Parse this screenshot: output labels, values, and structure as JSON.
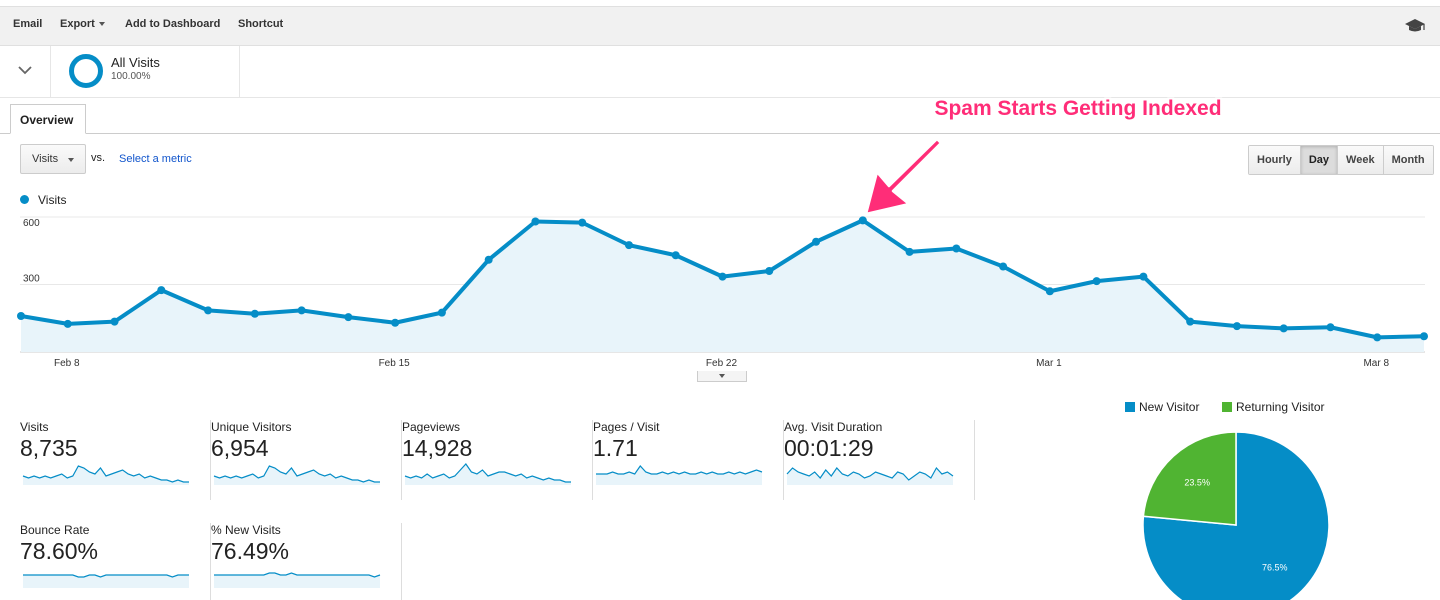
{
  "toolbar": {
    "email": "Email",
    "export": "Export",
    "add_to_dashboard": "Add to Dashboard",
    "shortcut": "Shortcut",
    "help_icon": "graduation-cap-icon"
  },
  "segment": {
    "name": "All Visits",
    "percent": "100.00%",
    "color": "#058dc7"
  },
  "tabs": [
    {
      "label": "Overview"
    }
  ],
  "metric_selector": {
    "value": "Visits",
    "vs_label": "vs.",
    "select_metric": "Select a metric"
  },
  "granularity": {
    "options": [
      "Hourly",
      "Day",
      "Week",
      "Month"
    ],
    "selected": "Day"
  },
  "annotation": {
    "text": "Spam Starts Getting Indexed",
    "color": "#ff2d78"
  },
  "chart_data": {
    "type": "area",
    "series": [
      {
        "name": "Visits",
        "color": "#058dc7",
        "values": [
          160,
          125,
          135,
          275,
          185,
          170,
          185,
          155,
          130,
          175,
          410,
          580,
          575,
          475,
          430,
          335,
          360,
          490,
          585,
          445,
          460,
          380,
          270,
          315,
          335,
          135,
          115,
          105,
          110,
          65,
          70
        ]
      }
    ],
    "x_tick_labels": [
      "Feb 8",
      "Feb 15",
      "Feb 22",
      "Mar 1",
      "Mar 8"
    ],
    "x_tick_indices": [
      1,
      8,
      15,
      22,
      29
    ],
    "y_ticks": [
      300,
      600
    ],
    "ylim": [
      0,
      600
    ],
    "grid": true,
    "legend": "top-left"
  },
  "scorecards": [
    {
      "label": "Visits",
      "value": "8,735",
      "spark": [
        4,
        3,
        4,
        3,
        4,
        3,
        4,
        5,
        3,
        4,
        9,
        8,
        6,
        5,
        8,
        4,
        5,
        6,
        7,
        5,
        4,
        5,
        3,
        4,
        3,
        2,
        2,
        1,
        2,
        1,
        1
      ]
    },
    {
      "label": "Unique Visitors",
      "value": "6,954",
      "spark": [
        4,
        3,
        4,
        3,
        4,
        3,
        4,
        5,
        3,
        4,
        9,
        8,
        6,
        5,
        8,
        4,
        5,
        6,
        7,
        5,
        4,
        5,
        3,
        4,
        3,
        2,
        2,
        1,
        2,
        1,
        1
      ]
    },
    {
      "label": "Pageviews",
      "value": "14,928",
      "spark": [
        4,
        3,
        4,
        3,
        5,
        3,
        4,
        5,
        3,
        4,
        7,
        10,
        6,
        5,
        7,
        4,
        5,
        6,
        6,
        5,
        4,
        5,
        3,
        4,
        3,
        2,
        3,
        2,
        2,
        1,
        1
      ]
    },
    {
      "label": "Pages / Visit",
      "value": "1.71",
      "spark": [
        5,
        5,
        5,
        6,
        5,
        5,
        6,
        5,
        9,
        6,
        5,
        5,
        6,
        5,
        6,
        5,
        6,
        5,
        5,
        6,
        5,
        6,
        5,
        5,
        6,
        5,
        6,
        5,
        6,
        7,
        6
      ]
    },
    {
      "label": "Avg. Visit Duration",
      "value": "00:01:29",
      "spark": [
        5,
        8,
        6,
        5,
        4,
        6,
        3,
        7,
        4,
        8,
        5,
        4,
        6,
        5,
        3,
        4,
        6,
        5,
        4,
        3,
        6,
        5,
        2,
        4,
        6,
        5,
        3,
        8,
        5,
        6,
        4
      ]
    },
    {
      "label": "Bounce Rate",
      "value": "78.60%",
      "spark": [
        6,
        6,
        6,
        6,
        6,
        6,
        6,
        6,
        6,
        6,
        5,
        5,
        6,
        6,
        5,
        6,
        6,
        6,
        6,
        6,
        6,
        6,
        6,
        6,
        6,
        6,
        6,
        5,
        6,
        6,
        6
      ]
    },
    {
      "label": "% New Visits",
      "value": "76.49%",
      "spark": [
        6,
        6,
        6,
        6,
        6,
        6,
        6,
        6,
        6,
        6,
        7,
        7,
        6,
        6,
        7,
        6,
        6,
        6,
        6,
        6,
        6,
        6,
        6,
        6,
        6,
        6,
        6,
        6,
        6,
        5,
        6
      ]
    }
  ],
  "pie_chart": {
    "type": "pie",
    "slices": [
      {
        "name": "New Visitor",
        "value": 76.5,
        "label": "76.5%",
        "color": "#058dc7"
      },
      {
        "name": "Returning Visitor",
        "value": 23.5,
        "label": "23.5%",
        "color": "#50b432"
      }
    ]
  }
}
